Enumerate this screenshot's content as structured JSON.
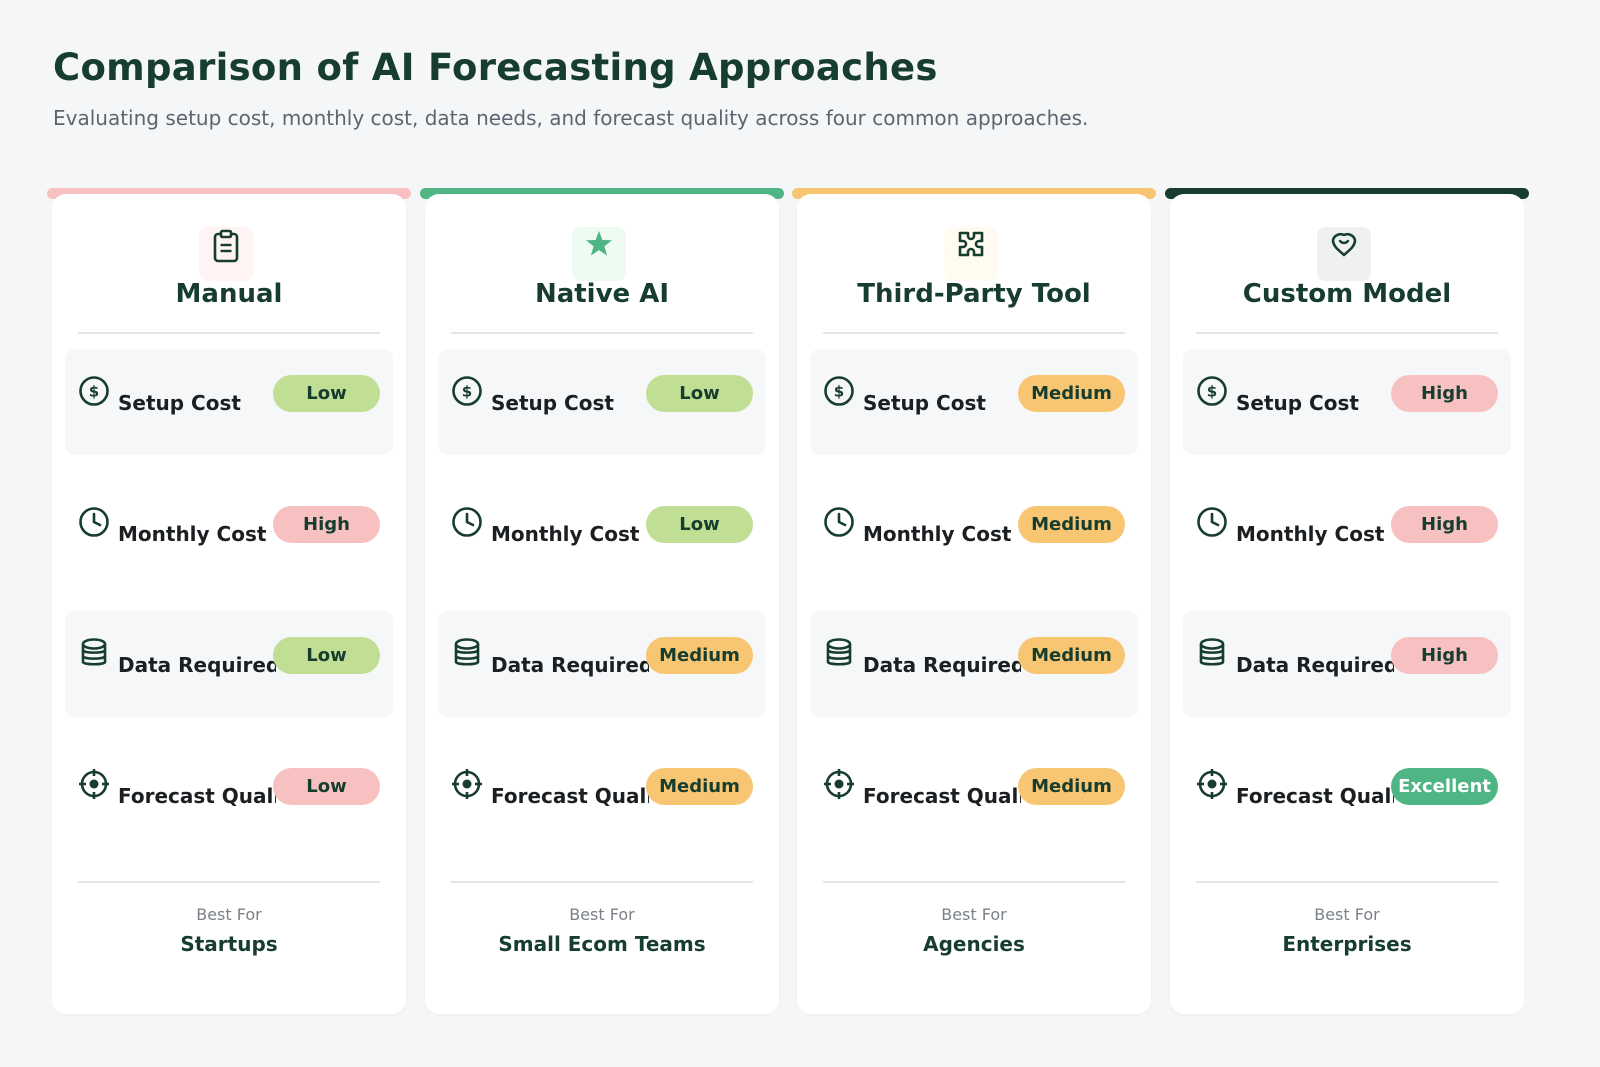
{
  "header": {
    "title": "Comparison of AI Forecasting Approaches",
    "subtitle": "Evaluating setup cost, monthly cost, data needs, and forecast quality across four common approaches."
  },
  "colors": {
    "low": "#c1de95",
    "medium": "#f8c672",
    "high": "#f7c1c2",
    "excellent": "#4fb584",
    "dark": "#173d2e"
  },
  "best_for_label": "Best For",
  "cards": [
    {
      "name": "Manual",
      "icon": "clipboard-icon",
      "bar_color": "#f7c1c2",
      "icon_bg": "#fff3f3",
      "rows": [
        {
          "label": "Setup Cost",
          "icon": "dollar-icon",
          "value": "Low",
          "level": "low"
        },
        {
          "label": "Monthly Cost",
          "icon": "clock-icon",
          "value": "High",
          "level": "high"
        },
        {
          "label": "Data Required",
          "icon": "database-icon",
          "value": "Low",
          "level": "low"
        },
        {
          "label": "Forecast Quality",
          "icon": "target-icon",
          "value": "Low",
          "level": "high"
        }
      ],
      "best_for": "Startups"
    },
    {
      "name": "Native AI",
      "icon": "star-icon",
      "bar_color": "#4fb584",
      "icon_bg": "#edfbf2",
      "rows": [
        {
          "label": "Setup Cost",
          "icon": "dollar-icon",
          "value": "Low",
          "level": "low"
        },
        {
          "label": "Monthly Cost",
          "icon": "clock-icon",
          "value": "Low",
          "level": "low"
        },
        {
          "label": "Data Required",
          "icon": "database-icon",
          "value": "Medium",
          "level": "medium"
        },
        {
          "label": "Forecast Quality",
          "icon": "target-icon",
          "value": "Medium",
          "level": "medium"
        }
      ],
      "best_for": "Small Ecom Teams"
    },
    {
      "name": "Third-Party Tool",
      "icon": "puzzle-icon",
      "bar_color": "#f8c672",
      "icon_bg": "#fffbf0",
      "rows": [
        {
          "label": "Setup Cost",
          "icon": "dollar-icon",
          "value": "Medium",
          "level": "medium"
        },
        {
          "label": "Monthly Cost",
          "icon": "clock-icon",
          "value": "Medium",
          "level": "medium"
        },
        {
          "label": "Data Required",
          "icon": "database-icon",
          "value": "Medium",
          "level": "medium"
        },
        {
          "label": "Forecast Quality",
          "icon": "target-icon",
          "value": "Medium",
          "level": "medium"
        }
      ],
      "best_for": "Agencies"
    },
    {
      "name": "Custom Model",
      "icon": "brain-icon",
      "bar_color": "#173d2e",
      "icon_bg": "#eff1f0",
      "rows": [
        {
          "label": "Setup Cost",
          "icon": "dollar-icon",
          "value": "High",
          "level": "high"
        },
        {
          "label": "Monthly Cost",
          "icon": "clock-icon",
          "value": "High",
          "level": "high"
        },
        {
          "label": "Data Required",
          "icon": "database-icon",
          "value": "High",
          "level": "high"
        },
        {
          "label": "Forecast Quality",
          "icon": "target-icon",
          "value": "Excellent",
          "level": "excellent"
        }
      ],
      "best_for": "Enterprises"
    }
  ]
}
